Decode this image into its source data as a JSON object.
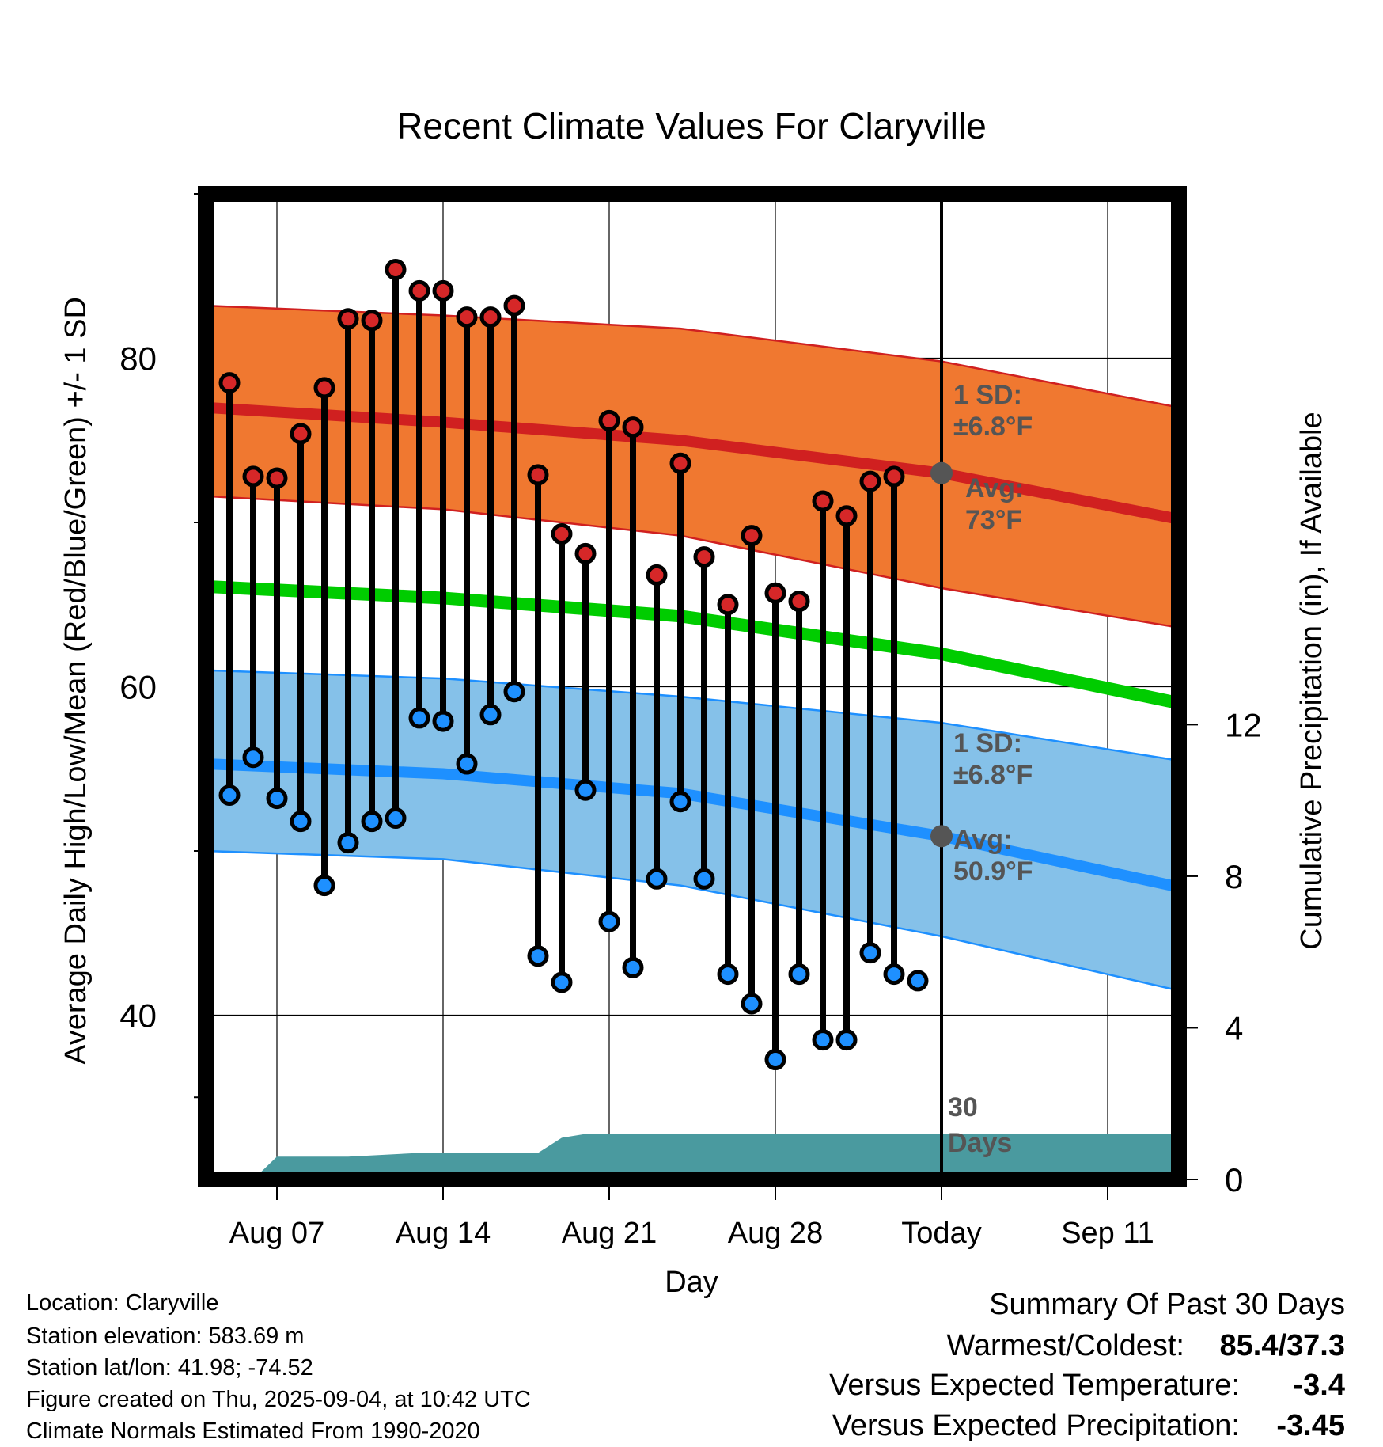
{
  "chart_data": {
    "type": "line",
    "title": "Recent Climate Values For Claryville",
    "xlabel": "Day",
    "ylabel": "Average Daily High/Low/Mean (Red/Blue/Green) +/- 1 SD",
    "y2label": "Cumulative Precipitation (in), If Available",
    "x_tick_labels": [
      "Aug 07",
      "Aug 14",
      "Aug 21",
      "Aug 28",
      "Today",
      "Sep 11"
    ],
    "y_ticks": [
      "40",
      "60",
      "80"
    ],
    "y2_ticks": [
      "0",
      "4",
      "8",
      "12"
    ],
    "xlim": [
      "2025-08-04",
      "2025-09-14"
    ],
    "ylim": [
      30,
      90
    ],
    "y2lim": [
      0,
      26
    ],
    "grid": true,
    "today": "2025-09-04",
    "daily_highs": {
      "name": "Daily High",
      "color": "#d62728",
      "x": [
        "2025-08-05",
        "2025-08-06",
        "2025-08-07",
        "2025-08-08",
        "2025-08-09",
        "2025-08-10",
        "2025-08-11",
        "2025-08-12",
        "2025-08-13",
        "2025-08-14",
        "2025-08-15",
        "2025-08-16",
        "2025-08-17",
        "2025-08-18",
        "2025-08-19",
        "2025-08-20",
        "2025-08-21",
        "2025-08-22",
        "2025-08-23",
        "2025-08-24",
        "2025-08-25",
        "2025-08-26",
        "2025-08-27",
        "2025-08-28",
        "2025-08-29",
        "2025-08-30",
        "2025-08-31",
        "2025-09-01",
        "2025-09-02",
        "2025-09-03"
      ],
      "values": [
        78.5,
        72.8,
        72.7,
        75.4,
        78.2,
        82.4,
        82.3,
        85.4,
        84.1,
        84.1,
        82.5,
        82.5,
        83.2,
        72.9,
        69.3,
        68.1,
        76.2,
        75.8,
        66.8,
        73.6,
        67.9,
        65.0,
        69.2,
        65.7,
        65.2,
        71.3,
        70.4,
        72.5,
        72.8,
        null
      ]
    },
    "daily_lows": {
      "name": "Daily Low",
      "color": "#1e90ff",
      "x": [
        "2025-08-05",
        "2025-08-06",
        "2025-08-07",
        "2025-08-08",
        "2025-08-09",
        "2025-08-10",
        "2025-08-11",
        "2025-08-12",
        "2025-08-13",
        "2025-08-14",
        "2025-08-15",
        "2025-08-16",
        "2025-08-17",
        "2025-08-18",
        "2025-08-19",
        "2025-08-20",
        "2025-08-21",
        "2025-08-22",
        "2025-08-23",
        "2025-08-24",
        "2025-08-25",
        "2025-08-26",
        "2025-08-27",
        "2025-08-28",
        "2025-08-29",
        "2025-08-30",
        "2025-08-31",
        "2025-09-01",
        "2025-09-02",
        "2025-09-03"
      ],
      "values": [
        53.4,
        55.7,
        53.2,
        51.8,
        47.9,
        50.5,
        51.8,
        52.0,
        58.1,
        57.9,
        55.3,
        58.3,
        59.7,
        43.6,
        42.0,
        53.7,
        45.7,
        42.9,
        48.3,
        53.0,
        48.3,
        42.5,
        40.7,
        37.3,
        42.5,
        38.5,
        38.5,
        43.8,
        42.5,
        42.1
      ]
    },
    "normal_high": {
      "name": "Avg High",
      "x": [
        "2025-08-04",
        "2025-08-14",
        "2025-08-24",
        "2025-09-04",
        "2025-09-14"
      ],
      "values": [
        77.0,
        76.1,
        75.0,
        73.0,
        70.2
      ],
      "sd_upper": [
        83.2,
        82.6,
        81.8,
        79.8,
        77.0
      ],
      "sd_lower": [
        71.6,
        70.8,
        69.2,
        66.0,
        63.6
      ]
    },
    "normal_low": {
      "name": "Avg Low",
      "x": [
        "2025-08-04",
        "2025-08-14",
        "2025-08-24",
        "2025-09-04",
        "2025-09-14"
      ],
      "values": [
        55.3,
        54.7,
        53.5,
        50.9,
        47.8
      ],
      "sd_upper": [
        61.0,
        60.5,
        59.4,
        57.8,
        55.5
      ],
      "sd_lower": [
        50.0,
        49.5,
        47.9,
        44.8,
        41.5
      ]
    },
    "normal_mean": {
      "name": "Avg Mean",
      "x": [
        "2025-08-04",
        "2025-08-14",
        "2025-08-24",
        "2025-09-04",
        "2025-09-14"
      ],
      "values": [
        66.1,
        65.4,
        64.3,
        62.0,
        59.0
      ]
    },
    "cumulative_precip": {
      "name": "Cumulative Precipitation",
      "x": [
        "2025-08-04",
        "2025-08-06",
        "2025-08-07",
        "2025-08-10",
        "2025-08-13",
        "2025-08-18",
        "2025-08-19",
        "2025-08-20",
        "2025-08-28",
        "2025-09-14"
      ],
      "values": [
        0,
        0,
        0.6,
        0.6,
        0.7,
        0.7,
        1.1,
        1.2,
        1.2,
        1.2
      ]
    },
    "annotations": {
      "high_sd": [
        "1 SD:",
        "±6.8°F"
      ],
      "high_avg": [
        "Avg:",
        "73°F"
      ],
      "low_sd": [
        "1 SD:",
        "±6.8°F"
      ],
      "low_avg": [
        "Avg:",
        "50.9°F"
      ],
      "days": [
        "30",
        "Days"
      ]
    }
  },
  "colors": {
    "high_band": "#f07830",
    "high_line": "#d02020",
    "low_band": "#85c1e9",
    "low_line": "#1e90ff",
    "mean_line": "#00cc00",
    "precip": "#4a9a9f",
    "marker_high": "#d62728",
    "marker_low": "#1e90ff",
    "annotation": "#555555",
    "temp_deviation": "#2e8bff",
    "precip_deviation": "#a0522d"
  },
  "info": {
    "location": "Location: Claryville",
    "elevation": "Station elevation: 583.69 m",
    "latlon": "Station lat/lon: 41.98; -74.52",
    "created": "Figure created on Thu, 2025-09-04, at 10:42 UTC",
    "normals": "Climate Normals Estimated From 1990-2020"
  },
  "summary": {
    "heading": "Summary Of Past 30 Days",
    "warm_cold_label": "Warmest/Coldest:",
    "warm_cold_value": "85.4/37.3",
    "temp_label": "Versus Expected Temperature:",
    "temp_value": "-3.4",
    "precip_label": "Versus Expected Precipitation:",
    "precip_value": "-3.45"
  }
}
